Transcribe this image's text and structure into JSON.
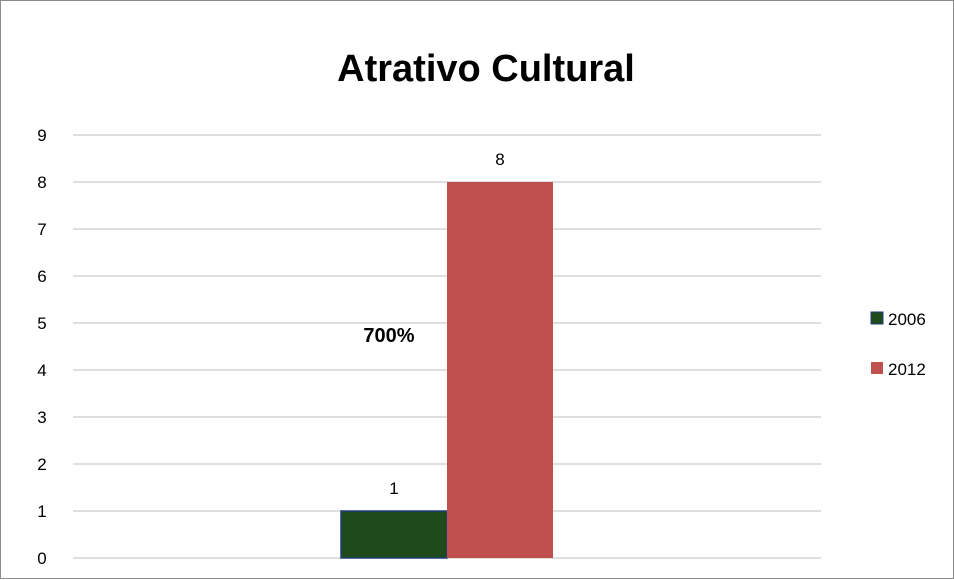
{
  "chart_data": {
    "type": "bar",
    "title": "Atrativo Cultural",
    "categories": [
      ""
    ],
    "series": [
      {
        "name": "2006",
        "values": [
          1
        ],
        "color": "#1f4a1c",
        "border": "#1f3d7a"
      },
      {
        "name": "2012",
        "values": [
          8
        ],
        "color": "#c0504d"
      }
    ],
    "ylim": [
      0,
      9
    ],
    "yticks": [
      0,
      1,
      2,
      3,
      4,
      5,
      6,
      7,
      8,
      9
    ],
    "grid": true,
    "legend_position": "right",
    "annotations": [
      {
        "text": "700%"
      }
    ]
  }
}
